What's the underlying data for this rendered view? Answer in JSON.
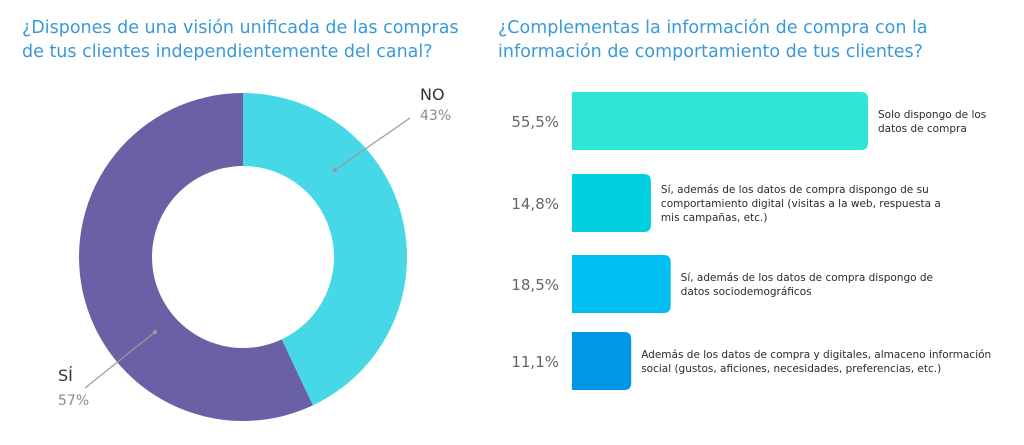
{
  "left_title": "¿Dispones de una visión unificada de las compras de tus clientes independientemente del canal?",
  "right_title": "¿Complementas la información de compra con la información de comportamiento de tus clientes?",
  "chart_data": [
    {
      "type": "pie",
      "variant": "donut",
      "slices": [
        {
          "label": "NO",
          "value": 43,
          "value_label": "43%",
          "color": "#46d8e6"
        },
        {
          "label": "SÍ",
          "value": 57,
          "value_label": "57%",
          "color": "#6a60a6"
        }
      ]
    },
    {
      "type": "bar",
      "orientation": "horizontal",
      "values": [
        55.5,
        14.8,
        18.5,
        11.1
      ],
      "value_labels": [
        "55,5%",
        "14,8%",
        "18,5%",
        "11,1%"
      ],
      "categories": [
        [
          "Solo dispongo de los",
          "datos de compra"
        ],
        [
          "Sí, además de los datos de compra dispongo de su",
          "comportamiento digital (visitas a la web, respuesta a",
          "mis campañas, etc.)"
        ],
        [
          "Sí, además de los datos de compra dispongo de",
          "datos sociodemográficos"
        ],
        [
          "Además de los datos de compra y digitales, almaceno información",
          "social (gustos, aficiones, necesidades, preferencias, etc.)"
        ]
      ],
      "colors": [
        "#2ee6d6",
        "#00d0e0",
        "#00bff0",
        "#0098e6"
      ]
    }
  ]
}
